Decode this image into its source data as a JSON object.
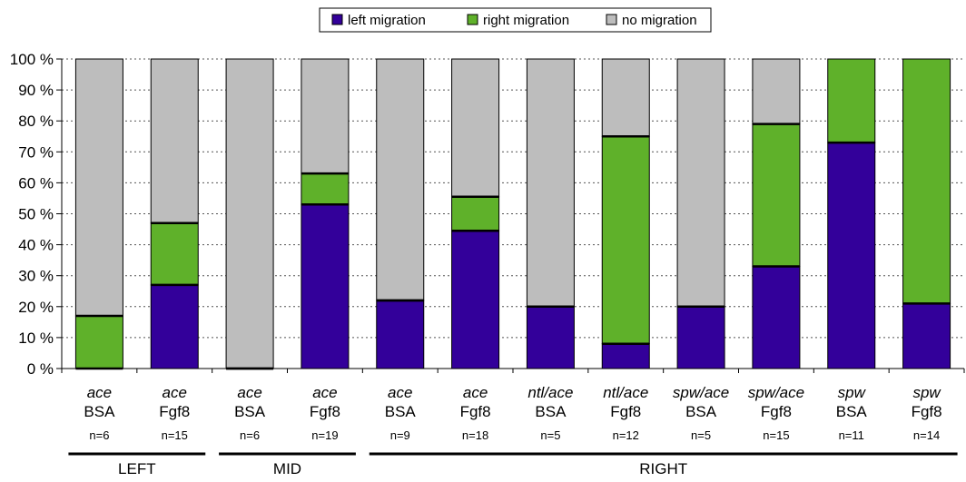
{
  "chart_data": {
    "type": "bar",
    "stacked": true,
    "percent_stacked": true,
    "y_ticks": [
      "0 %",
      "10 %",
      "20 %",
      "30 %",
      "40 %",
      "50 %",
      "60 %",
      "70 %",
      "80 %",
      "90 %",
      "100 %"
    ],
    "ylim": [
      0,
      100
    ],
    "grid": "horizontal-dotted",
    "legend_position": "top-center",
    "categories": [
      {
        "top": "ace",
        "bottom": "BSA",
        "n": "n=6"
      },
      {
        "top": "ace",
        "bottom": "Fgf8",
        "n": "n=15"
      },
      {
        "top": "ace",
        "bottom": "BSA",
        "n": "n=6"
      },
      {
        "top": "ace",
        "bottom": "Fgf8",
        "n": "n=19"
      },
      {
        "top": "ace",
        "bottom": "BSA",
        "n": "n=9"
      },
      {
        "top": "ace",
        "bottom": "Fgf8",
        "n": "n=18"
      },
      {
        "top": "ntl/ace",
        "bottom": "BSA",
        "n": "n=5"
      },
      {
        "top": "ntl/ace",
        "bottom": "Fgf8",
        "n": "n=12"
      },
      {
        "top": "spw/ace",
        "bottom": "BSA",
        "n": "n=5"
      },
      {
        "top": "spw/ace",
        "bottom": "Fgf8",
        "n": "n=15"
      },
      {
        "top": "spw",
        "bottom": "BSA",
        "n": "n=11"
      },
      {
        "top": "spw",
        "bottom": "Fgf8",
        "n": "n=14"
      }
    ],
    "series": [
      {
        "name": "left migration",
        "color": "#33009a",
        "values": [
          0,
          27,
          0,
          53,
          22,
          44.5,
          20,
          8,
          20,
          33,
          73,
          21
        ]
      },
      {
        "name": "right migration",
        "color": "#5fb12a",
        "values": [
          17,
          20,
          0,
          10,
          0,
          11,
          0,
          67,
          0,
          46,
          27,
          79
        ]
      },
      {
        "name": "no migration",
        "color": "#bdbdbd",
        "values": [
          83,
          53,
          100,
          37,
          78,
          44.5,
          80,
          25,
          80,
          21,
          0,
          0
        ]
      }
    ],
    "groups": [
      {
        "label": "LEFT",
        "start": 0,
        "end": 1
      },
      {
        "label": "MID",
        "start": 2,
        "end": 3
      },
      {
        "label": "RIGHT",
        "start": 4,
        "end": 11
      }
    ]
  }
}
